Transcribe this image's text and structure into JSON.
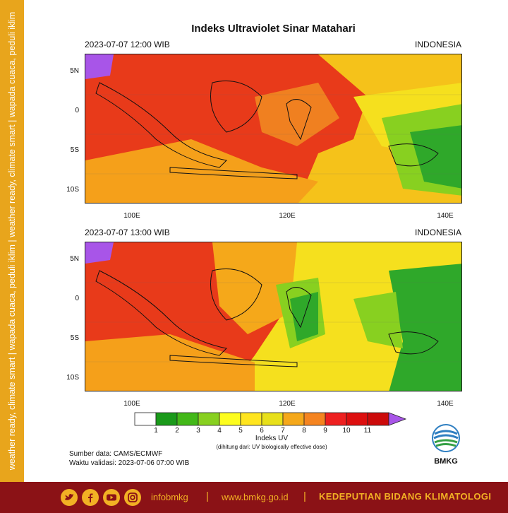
{
  "side_text": "weather ready, climate smart  |  wapada cuaca, peduli iklim  |  weather ready, climate smart  |  wapada cuaca, peduli iklim",
  "title": "Indeks Ultraviolet Sinar Matahari",
  "panels": [
    {
      "datetime": "2023-07-07   12:00 WIB",
      "region": "INDONESIA"
    },
    {
      "datetime": "2023-07-07   13:00 WIB",
      "region": "INDONESIA"
    }
  ],
  "lat_ticks": [
    "5N",
    "0",
    "5S",
    "10S"
  ],
  "lon_ticks": [
    "100E",
    "120E",
    "140E"
  ],
  "colorbar": {
    "labels": [
      "1",
      "2",
      "3",
      "4",
      "5",
      "6",
      "7",
      "8",
      "9",
      "10",
      "11"
    ],
    "colors": [
      "#ffffff",
      "#1a9a1a",
      "#42b818",
      "#88d020",
      "#fdfd1e",
      "#ffe51e",
      "#e8e01a",
      "#f5a81a",
      "#f58420",
      "#ee2020",
      "#dd0f0f",
      "#cc0a0a",
      "#a855e8"
    ],
    "title": "Indeks UV",
    "note": "(dihitung dari: UV biologically effective dose)"
  },
  "source": "Sumber data: CAMS/ECMWF",
  "validity": "Waktu validasi: 2023-07-06 07:00 WIB",
  "logo_text": "BMKG",
  "footer": {
    "handle": "infobmkg",
    "website": "www.bmkg.go.id",
    "department": "KEDEPUTIAN BIDANG KLIMATOLOGI",
    "icons": [
      "twitter-icon",
      "facebook-icon",
      "youtube-icon",
      "instagram-icon"
    ]
  }
}
